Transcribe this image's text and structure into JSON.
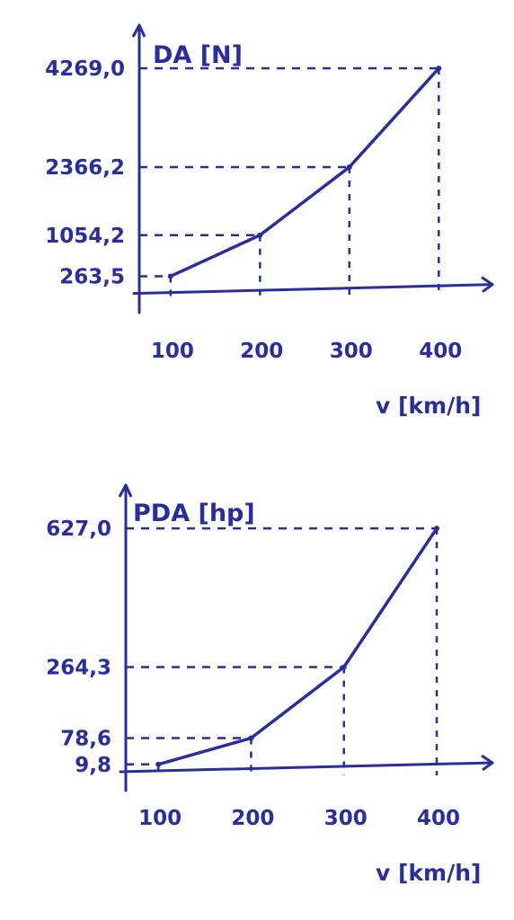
{
  "ink_color": "#2a2e9a",
  "chart_data": [
    {
      "type": "line",
      "ylabel": "DA [N]",
      "xlabel": "v [km/h]",
      "x": [
        100,
        200,
        300,
        400
      ],
      "x_ticks": [
        "100",
        "200",
        "300",
        "400"
      ],
      "y": [
        263.5,
        1054.2,
        2366.2,
        4269.0
      ],
      "y_ticks": [
        "4269,0",
        "2366,2",
        "1054,2",
        "263,5"
      ],
      "xlim": [
        65,
        460
      ],
      "ylim": [
        -300,
        5100
      ],
      "grid": false,
      "guides": "dashed to both axes"
    },
    {
      "type": "line",
      "ylabel": "PDA [hp]",
      "xlabel": "v [km/h]",
      "x": [
        100,
        200,
        300,
        400
      ],
      "x_ticks": [
        "100",
        "200",
        "300",
        "400"
      ],
      "y": [
        9.8,
        78.6,
        264.3,
        627.0
      ],
      "y_ticks": [
        "627,0",
        "264,3",
        "78,6",
        "9,8"
      ],
      "xlim": [
        65,
        460
      ],
      "ylim": [
        -40,
        740
      ],
      "grid": false,
      "guides": "dashed to both axes"
    }
  ]
}
